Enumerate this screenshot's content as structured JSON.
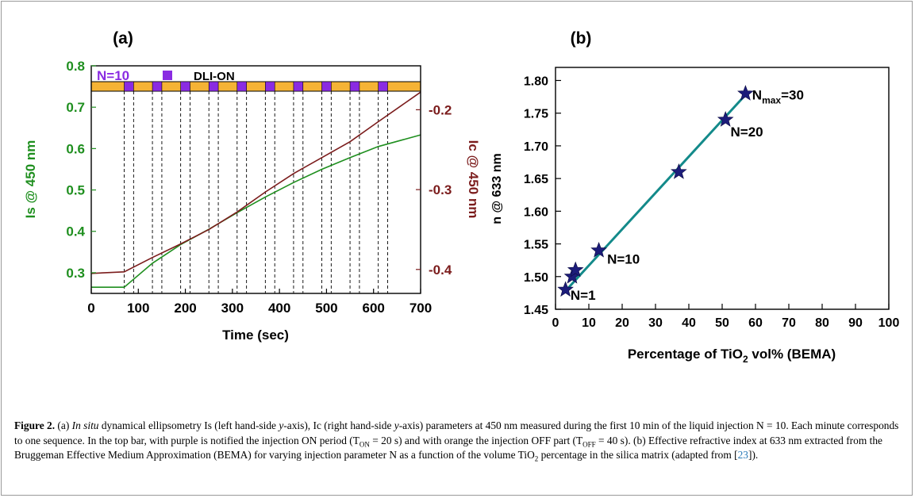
{
  "panel_a": {
    "label": "(a)",
    "xlabel": "Time (sec)",
    "ylabel_left": "Is @ 450 nm",
    "ylabel_right": "Ic @ 450 nm",
    "top_bar_text": "N=10",
    "legend_text": "DLI-ON",
    "colors": {
      "is": "#1f8f1f",
      "ic": "#7b1c1c",
      "on": "#8a2be2",
      "off": "#f5b335"
    }
  },
  "panel_b": {
    "label": "(b)",
    "xlabel_pre": "Percentage of TiO",
    "xlabel_sub": "2",
    "xlabel_post": " vol% (BEMA)",
    "ylabel": "n @ 633 nm",
    "annotations": [
      {
        "text": "N=1",
        "x": 4.5,
        "y": 1.472
      },
      {
        "text": "N=10",
        "x": 15.5,
        "y": 1.527
      },
      {
        "text": "N=20",
        "x": 52.5,
        "y": 1.722
      },
      {
        "main": "N",
        "sub": "max",
        "post": "=30",
        "x": 59,
        "y": 1.778
      }
    ],
    "colors": {
      "star": "#1c1c7a",
      "line": "#138a8a"
    }
  },
  "chart_data": [
    {
      "type": "line",
      "x": [
        0,
        70,
        130,
        190,
        250,
        310,
        370,
        430,
        490,
        550,
        610,
        700
      ],
      "series": [
        {
          "name": "Is",
          "axis": "left",
          "values": [
            0.265,
            0.265,
            0.323,
            0.368,
            0.405,
            0.445,
            0.483,
            0.518,
            0.55,
            0.578,
            0.605,
            0.633
          ]
        },
        {
          "name": "Ic",
          "axis": "right",
          "values": [
            -0.405,
            -0.403,
            -0.385,
            -0.368,
            -0.35,
            -0.328,
            -0.303,
            -0.28,
            -0.26,
            -0.24,
            -0.215,
            -0.178
          ]
        }
      ],
      "xlabel": "Time (sec)",
      "ylabel": "Is @ 450 nm",
      "y2label": "Ic @ 450 nm",
      "xlim": [
        0,
        700
      ],
      "ylim": [
        0.25,
        0.8
      ],
      "y2lim": [
        -0.43,
        -0.145
      ],
      "xticks": [
        0,
        100,
        200,
        300,
        400,
        500,
        600,
        700
      ],
      "yticks": [
        0.3,
        0.4,
        0.5,
        0.6,
        0.7,
        0.8
      ],
      "y2ticks": [
        -0.4,
        -0.3,
        -0.2
      ],
      "on_periods": [
        [
          70,
          90
        ],
        [
          130,
          150
        ],
        [
          190,
          210
        ],
        [
          250,
          270
        ],
        [
          310,
          330
        ],
        [
          370,
          390
        ],
        [
          430,
          450
        ],
        [
          490,
          510
        ],
        [
          550,
          570
        ],
        [
          610,
          630
        ]
      ],
      "grid": false
    },
    {
      "type": "scatter",
      "x": [
        3,
        5,
        6,
        13,
        37,
        51,
        57
      ],
      "y": [
        1.48,
        1.5,
        1.51,
        1.54,
        1.66,
        1.74,
        1.78
      ],
      "fit_line": [
        [
          3,
          1.478
        ],
        [
          57,
          1.778
        ]
      ],
      "xlabel": "Percentage of TiO2 vol% (BEMA)",
      "ylabel": "n @ 633 nm",
      "xlim": [
        0,
        100
      ],
      "ylim": [
        1.45,
        1.82
      ],
      "xticks": [
        0,
        10,
        20,
        30,
        40,
        50,
        60,
        70,
        80,
        90,
        100
      ],
      "yticks": [
        1.45,
        1.5,
        1.55,
        1.6,
        1.65,
        1.7,
        1.75,
        1.8
      ],
      "grid": false
    }
  ],
  "caption": {
    "fig_label": "Figure 2.",
    "s1": " (a) ",
    "insitu": "In situ",
    "s2": " dynamical ellipsometry Is (left hand-side ",
    "y1": "y",
    "s3": "-axis), Ic (right hand-side ",
    "y2": "y",
    "s4": "-axis) parameters at 450 nm measured during the first 10 min of the liquid injection N = 10. Each minute corresponds to one sequence. In the top bar, with purple is notified the injection ON period (T",
    "sub_on": "ON",
    "s5": " = 20 s) and with orange the injection OFF part (T",
    "sub_off": "OFF",
    "s6": " = 40 s). (b) Effective refractive index at 633 nm extracted from the Bruggeman Effective Medium Approximation (BEMA) for varying injection parameter N as a function of the volume TiO",
    "sub_2": "2",
    "s7": " percentage in the silica matrix (adapted from [",
    "ref": "23",
    "s8": "])."
  }
}
